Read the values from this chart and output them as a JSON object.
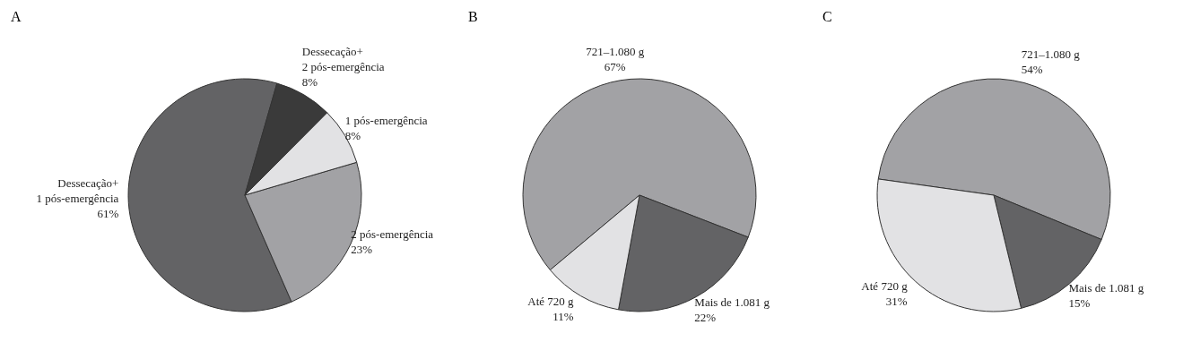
{
  "chart_data": [
    {
      "type": "pie",
      "title": "A",
      "categories": [
        "Dessecação+\n1 pós-emergência",
        "2 pós-emergência",
        "1 pós-emergência",
        "Dessecação+\n2 pós-emergência"
      ],
      "values": [
        61,
        23,
        8,
        8
      ],
      "colors": [
        "#636365",
        "#a2a2a5",
        "#e2e2e4",
        "#3a3a3a"
      ],
      "value_labels": [
        "61%",
        "23%",
        "8%",
        "8%"
      ]
    },
    {
      "type": "pie",
      "title": "B",
      "categories": [
        "721–1.080 g",
        "Mais de 1.081 g",
        "Até 720 g"
      ],
      "values": [
        67,
        22,
        11
      ],
      "colors": [
        "#a2a2a5",
        "#636365",
        "#e2e2e4"
      ],
      "value_labels": [
        "67%",
        "22%",
        "11%"
      ]
    },
    {
      "type": "pie",
      "title": "C",
      "categories": [
        "721–1.080 g",
        "Mais de 1.081 g",
        "Até 720 g"
      ],
      "values": [
        54,
        15,
        31
      ],
      "colors": [
        "#a2a2a5",
        "#636365",
        "#e2e2e4"
      ],
      "value_labels": [
        "54%",
        "15%",
        "31%"
      ]
    }
  ]
}
